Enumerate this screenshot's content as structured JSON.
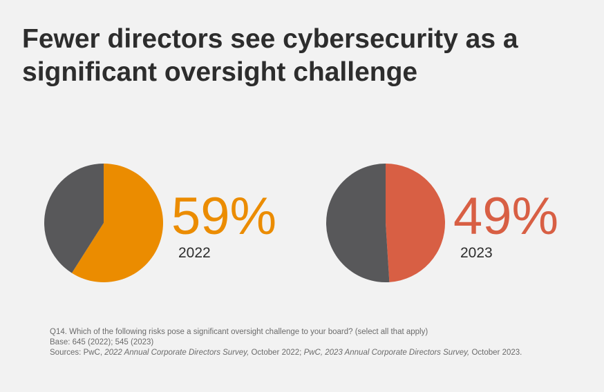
{
  "title": "Fewer directors see cybersecurity as a significant oversight challenge",
  "chart_data": [
    {
      "type": "pie",
      "label": "2022",
      "value_label": "59%",
      "slices": [
        {
          "value": 59,
          "color": "#eb8c00"
        },
        {
          "value": 41,
          "color": "#58585a"
        }
      ]
    },
    {
      "type": "pie",
      "label": "2023",
      "value_label": "49%",
      "slices": [
        {
          "value": 49,
          "color": "#d85f44"
        },
        {
          "value": 51,
          "color": "#58585a"
        }
      ]
    }
  ],
  "notes": {
    "question": "Q14. Which of the following risks pose a significant oversight challenge to your board? (select all that apply)",
    "base": "Base: 645 (2022); 545 (2023)",
    "sources_prefix": "Sources: PwC, ",
    "source1": "2022 Annual Corporate Directors Survey,",
    "mid": " October 2022; ",
    "source2": "PwC, 2023 Annual Corporate Directors Survey,",
    "suffix": " October 2023."
  }
}
